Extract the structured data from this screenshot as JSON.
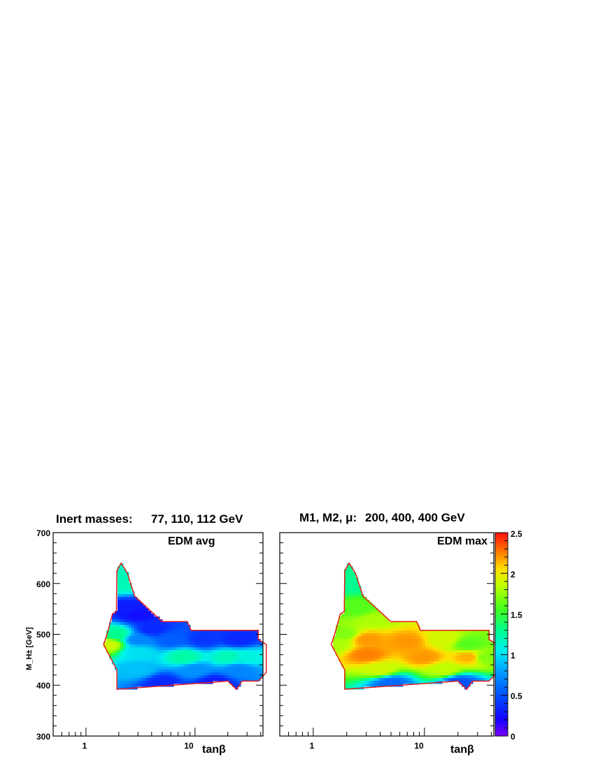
{
  "chart_data": [
    {
      "type": "heatmap",
      "title": "Inert masses:",
      "title_values": "77, 110, 112 GeV",
      "annotation": "EDM avg",
      "xlabel": "tanβ",
      "ylabel": "M_H± [GeV]",
      "xscale": "log",
      "xlim": [
        0.5,
        42
      ],
      "ylim": [
        300,
        700
      ],
      "x_tick_labels": [
        "1",
        "10"
      ],
      "y_tick_labels": [
        "300",
        "400",
        "500",
        "600",
        "700"
      ],
      "boundary_color": "#e41a1c",
      "cells": [
        {
          "x": 1.6,
          "y": 480,
          "v": 1.9
        },
        {
          "x": 1.9,
          "y": 500,
          "v": 1.3
        },
        {
          "x": 2.2,
          "y": 600,
          "v": 1.2
        },
        {
          "x": 2.5,
          "y": 550,
          "v": 0.3
        },
        {
          "x": 3.0,
          "y": 540,
          "v": 0.25
        },
        {
          "x": 4.0,
          "y": 510,
          "v": 0.35
        },
        {
          "x": 3.0,
          "y": 490,
          "v": 0.7
        },
        {
          "x": 6.0,
          "y": 490,
          "v": 0.55
        },
        {
          "x": 12.0,
          "y": 490,
          "v": 0.4
        },
        {
          "x": 25.0,
          "y": 490,
          "v": 0.35
        },
        {
          "x": 3.0,
          "y": 465,
          "v": 1.0
        },
        {
          "x": 8.0,
          "y": 455,
          "v": 1.25
        },
        {
          "x": 20.0,
          "y": 455,
          "v": 1.2
        },
        {
          "x": 30.0,
          "y": 455,
          "v": 1.1
        },
        {
          "x": 3.0,
          "y": 430,
          "v": 0.9
        },
        {
          "x": 10.0,
          "y": 430,
          "v": 0.75
        },
        {
          "x": 25.0,
          "y": 430,
          "v": 0.7
        },
        {
          "x": 5.0,
          "y": 405,
          "v": 0.35
        },
        {
          "x": 15.0,
          "y": 405,
          "v": 0.3
        }
      ]
    },
    {
      "type": "heatmap",
      "title": "M1, M2, μ:",
      "title_values": "200, 400, 400 GeV",
      "annotation": "EDM max",
      "xlabel": "tanβ",
      "ylabel": "",
      "xscale": "log",
      "xlim": [
        0.5,
        42
      ],
      "ylim": [
        300,
        700
      ],
      "x_tick_labels": [
        "1",
        "10"
      ],
      "boundary_color": "#e41a1c",
      "colorbar": {
        "min": 0,
        "max": 2.5,
        "tick_labels": [
          "0",
          "0.5",
          "1",
          "1.5",
          "2",
          "2.5"
        ]
      },
      "cells": [
        {
          "x": 1.6,
          "y": 480,
          "v": 1.8
        },
        {
          "x": 1.9,
          "y": 500,
          "v": 1.7
        },
        {
          "x": 2.2,
          "y": 600,
          "v": 1.3
        },
        {
          "x": 2.6,
          "y": 550,
          "v": 1.6
        },
        {
          "x": 3.5,
          "y": 530,
          "v": 1.8
        },
        {
          "x": 3.0,
          "y": 490,
          "v": 2.2
        },
        {
          "x": 7.0,
          "y": 485,
          "v": 2.2
        },
        {
          "x": 15.0,
          "y": 490,
          "v": 1.9
        },
        {
          "x": 25.0,
          "y": 480,
          "v": 1.6
        },
        {
          "x": 3.0,
          "y": 460,
          "v": 2.25
        },
        {
          "x": 10.0,
          "y": 455,
          "v": 2.2
        },
        {
          "x": 25.0,
          "y": 455,
          "v": 2.15
        },
        {
          "x": 35.0,
          "y": 455,
          "v": 1.7
        },
        {
          "x": 4.0,
          "y": 430,
          "v": 1.9
        },
        {
          "x": 15.0,
          "y": 430,
          "v": 1.85
        },
        {
          "x": 5.0,
          "y": 405,
          "v": 0.6
        },
        {
          "x": 20.0,
          "y": 405,
          "v": 0.5
        }
      ]
    }
  ]
}
